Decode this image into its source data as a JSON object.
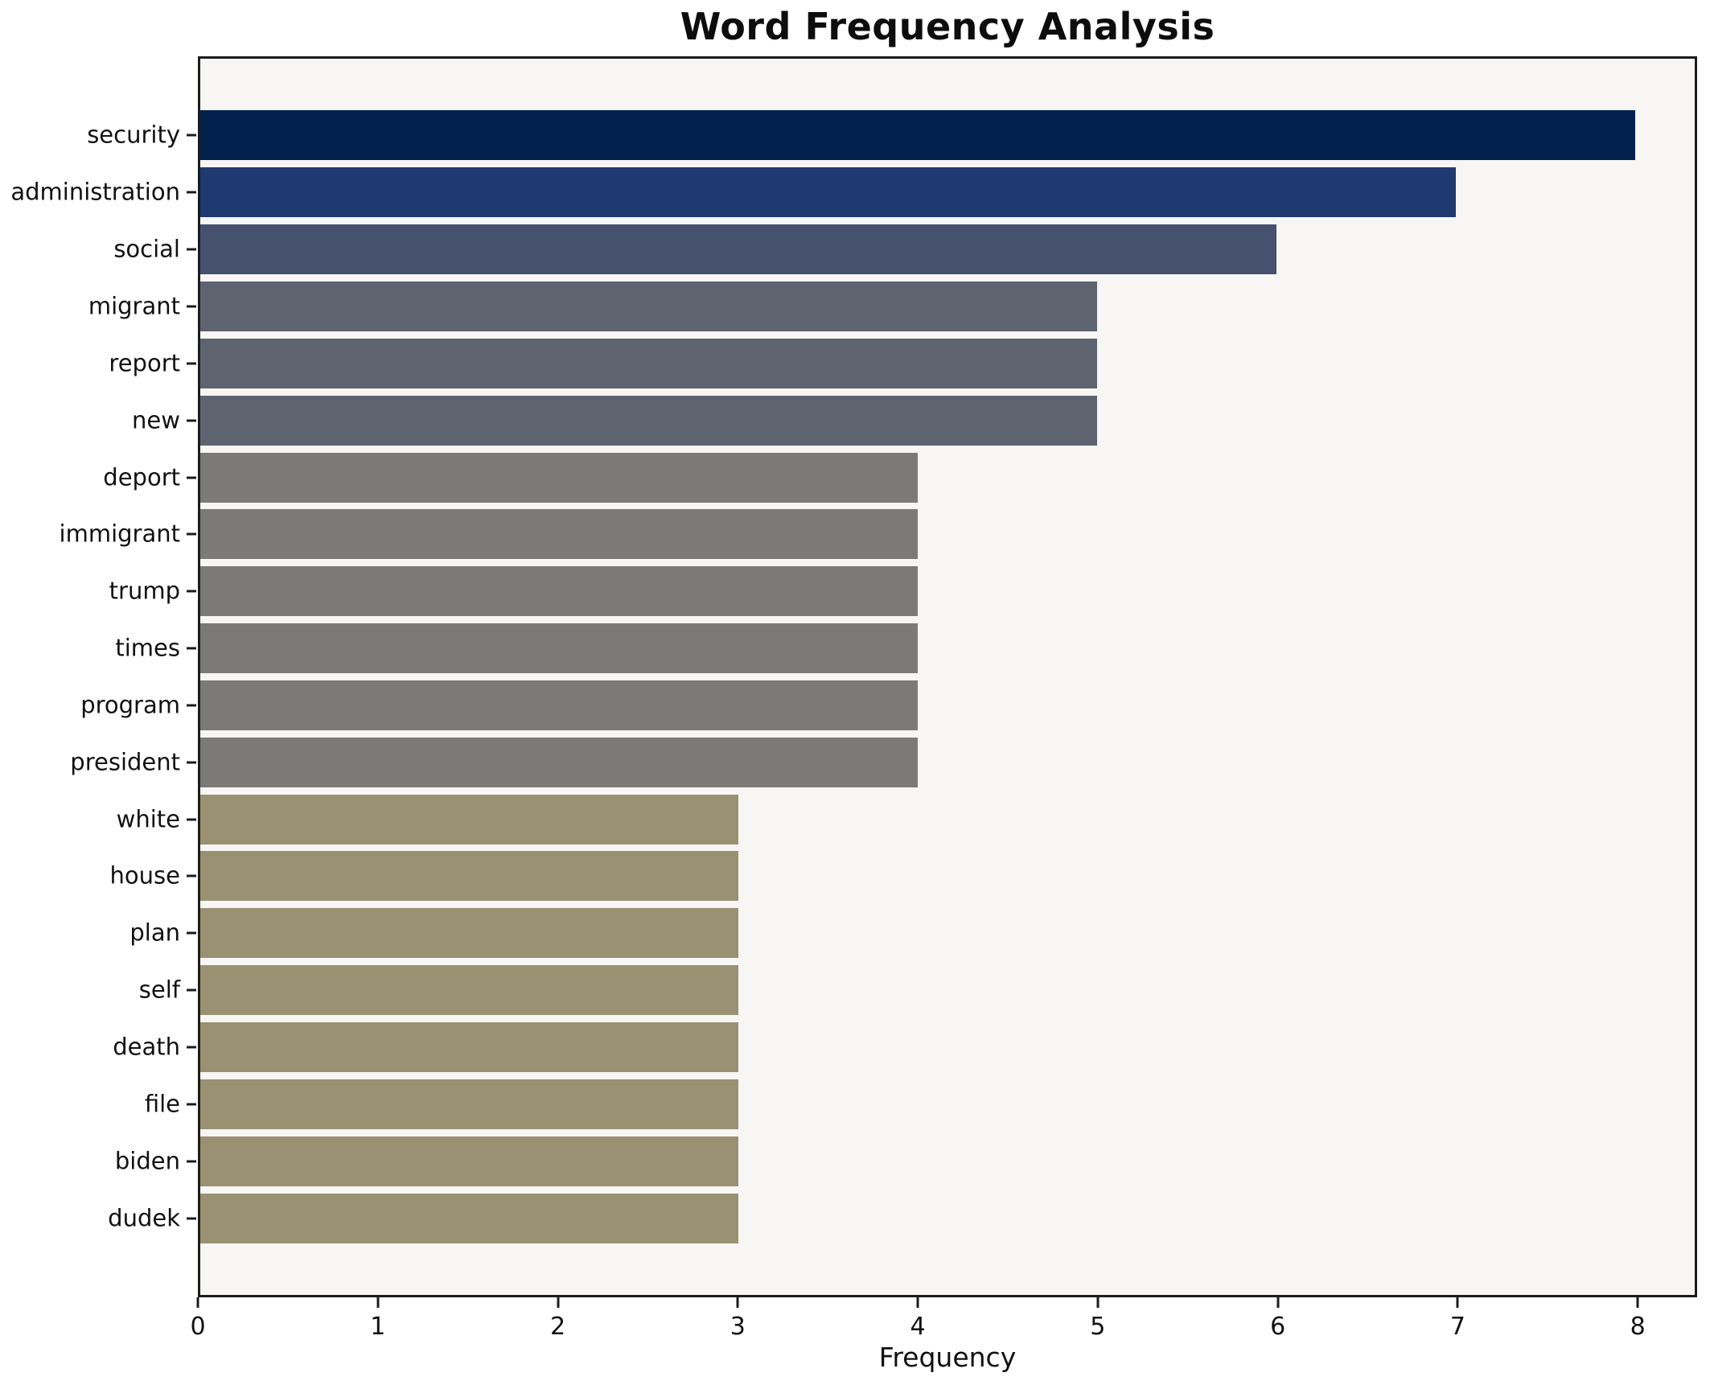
{
  "chart_data": {
    "type": "bar",
    "orientation": "horizontal",
    "title": "Word Frequency Analysis",
    "xlabel": "Frequency",
    "ylabel": "",
    "categories": [
      "security",
      "administration",
      "social",
      "migrant",
      "report",
      "new",
      "deport",
      "immigrant",
      "trump",
      "times",
      "program",
      "president",
      "white",
      "house",
      "plan",
      "self",
      "death",
      "file",
      "biden",
      "dudek"
    ],
    "values": [
      8,
      7,
      6,
      5,
      5,
      5,
      4,
      4,
      4,
      4,
      4,
      4,
      3,
      3,
      3,
      3,
      3,
      3,
      3,
      3
    ],
    "bar_colors": [
      "#02224d",
      "#1e3a70",
      "#465170",
      "#5e6370",
      "#5e6370",
      "#5e6370",
      "#7b7a76",
      "#7b7a76",
      "#7b7a76",
      "#7b7a76",
      "#7b7a76",
      "#7b7a76",
      "#9a9172",
      "#9a9172",
      "#9a9172",
      "#9a9172",
      "#9a9172",
      "#9a9172",
      "#9a9172",
      "#9a9172"
    ],
    "xticks": [
      "0",
      "1",
      "2",
      "3",
      "4",
      "5",
      "6",
      "7",
      "8"
    ],
    "xlim": [
      0,
      8.33
    ],
    "grid": false,
    "legend": "none",
    "plot_background": "#f7f6f4",
    "figure_background": "#ffffff",
    "spine_color": "#1c1c1c",
    "bar_slot_units": 21.78,
    "bar_offset_units": 1.39,
    "bar_height_units": 0.875
  }
}
